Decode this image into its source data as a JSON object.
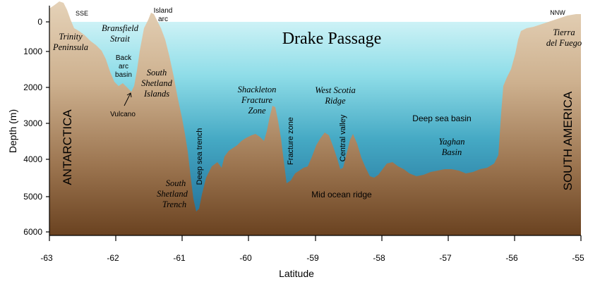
{
  "title": "Drake Passage",
  "axes": {
    "ylabel": "Depth  (m)",
    "xlabel": "Latitude",
    "yticks": [
      "0",
      "1000",
      "2000",
      "3000",
      "4000",
      "5000",
      "6000"
    ],
    "xticks": [
      "-63",
      "-62",
      "-61",
      "-60",
      "-59",
      "-58",
      "-57",
      "-56",
      "-55"
    ]
  },
  "directions": {
    "left": "SSE",
    "right": "NNW"
  },
  "regions": {
    "left": "ANTARCTICA",
    "right": "SOUTH  AMERICA"
  },
  "labels": {
    "trinity_1": "Trinity",
    "trinity_2": "Peninsula",
    "bransfield_1": "Bransfield",
    "bransfield_2": "Strait",
    "island_arc_1": "Island",
    "island_arc_2": "arc",
    "back_arc_1": "Back",
    "back_arc_2": "arc",
    "back_arc_3": "basin",
    "vulcano": "Vulcano",
    "south_shetland_islands_1": "South",
    "south_shetland_islands_2": "Shetland",
    "south_shetland_islands_3": "Islands",
    "south_shetland_trench_1": "South",
    "south_shetland_trench_2": "Shetland",
    "south_shetland_trench_3": "Trench",
    "deep_sea_trench": "Deep sea trench",
    "shackleton_1": "Shackleton",
    "shackleton_2": "Fracture",
    "shackleton_3": "Zone",
    "fracture_zone": "Fracture zone",
    "west_scotia_1": "West Scotia",
    "west_scotia_2": "Ridge",
    "central_valley": "Central valley",
    "deep_sea_basin": "Deep sea basin",
    "yaghan_1": "Yaghan",
    "yaghan_2": "Basin",
    "mid_ocean_ridge": "Mid ocean ridge",
    "tierra_1": "Tierra",
    "tierra_2": "del Fuego"
  },
  "colors": {
    "water_top": "#c9f1f5",
    "water_bottom": "#1f6a92",
    "land_top": "#dfc9ad",
    "land_bottom": "#6d4523",
    "axis": "#000000"
  }
}
